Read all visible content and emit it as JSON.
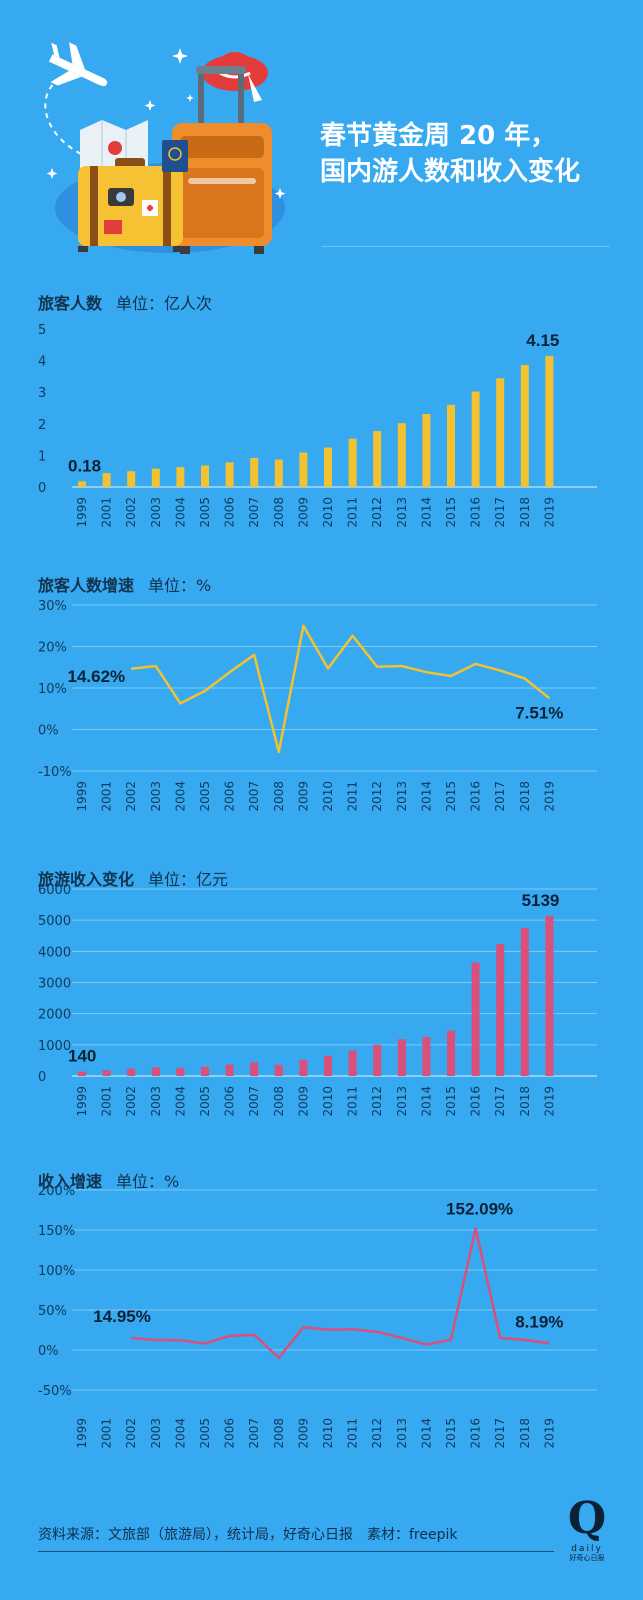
{
  "header": {
    "title_line1": "春节黄金周 20 年，",
    "title_line2": "国内游人数和收入变化"
  },
  "colors": {
    "background": "#36a9f0",
    "bar_visitors": "#f2c230",
    "line_visitor_growth": "#f2c230",
    "bar_revenue": "#d9507a",
    "line_revenue_growth": "#d9507a",
    "grid": "#7fcaf7"
  },
  "charts": {
    "visitors": {
      "title": "旅客人数",
      "unit": "单位：亿人次",
      "first_label": "0.18",
      "last_label": "4.15"
    },
    "visitor_growth": {
      "title": "旅客人数增速",
      "unit": "单位：%",
      "first_label": "14.62%",
      "last_label": "7.51%"
    },
    "revenue": {
      "title": "旅游收入变化",
      "unit": "单位：亿元",
      "first_label": "140",
      "last_label": "5139"
    },
    "revenue_growth": {
      "title": "收入增速",
      "unit": "单位：%",
      "first_label": "14.95%",
      "peak_label": "152.09%",
      "last_label": "8.19%"
    }
  },
  "chart_data": [
    {
      "type": "bar",
      "title": "旅客人数",
      "ylabel": "单位：亿人次",
      "categories": [
        "1999",
        "2001",
        "2002",
        "2003",
        "2004",
        "2005",
        "2006",
        "2007",
        "2008",
        "2009",
        "2010",
        "2011",
        "2012",
        "2013",
        "2014",
        "2015",
        "2016",
        "2017",
        "2018",
        "2019"
      ],
      "values": [
        0.18,
        0.44,
        0.5,
        0.58,
        0.63,
        0.68,
        0.78,
        0.92,
        0.87,
        1.09,
        1.25,
        1.53,
        1.77,
        2.02,
        2.31,
        2.6,
        3.02,
        3.44,
        3.86,
        4.15
      ],
      "ylim": [
        0,
        5
      ],
      "yticks": [
        0,
        1,
        2,
        3,
        4,
        5
      ],
      "grid": false
    },
    {
      "type": "line",
      "title": "旅客人数增速",
      "ylabel": "单位：%",
      "categories": [
        "1999",
        "2001",
        "2002",
        "2003",
        "2004",
        "2005",
        "2006",
        "2007",
        "2008",
        "2009",
        "2010",
        "2011",
        "2012",
        "2013",
        "2014",
        "2015",
        "2016",
        "2017",
        "2018",
        "2019"
      ],
      "values": [
        null,
        null,
        14.62,
        15.3,
        6.3,
        9.3,
        13.8,
        18,
        -5.4,
        25,
        14.7,
        22.6,
        15.1,
        15.3,
        13.8,
        12.9,
        15.8,
        14.2,
        12.3,
        7.51
      ],
      "ylim": [
        -10,
        30
      ],
      "yticks": [
        -10,
        0,
        10,
        20,
        30
      ],
      "ytick_labels": [
        "-10%",
        "0%",
        "10%",
        "20%",
        "30%"
      ],
      "grid": true
    },
    {
      "type": "bar",
      "title": "旅游收入变化",
      "ylabel": "单位：亿元",
      "categories": [
        "1999",
        "2001",
        "2002",
        "2003",
        "2004",
        "2005",
        "2006",
        "2007",
        "2008",
        "2009",
        "2010",
        "2011",
        "2012",
        "2013",
        "2014",
        "2015",
        "2016",
        "2017",
        "2018",
        "2019"
      ],
      "values": [
        140,
        180,
        240,
        280,
        260,
        300,
        370,
        440,
        360,
        520,
        650,
        820,
        1000,
        1180,
        1250,
        1460,
        3640,
        4230,
        4750,
        5139
      ],
      "ylim": [
        0,
        6000
      ],
      "yticks": [
        0,
        1000,
        2000,
        3000,
        4000,
        5000,
        6000
      ],
      "grid": true
    },
    {
      "type": "line",
      "title": "收入增速",
      "ylabel": "单位：%",
      "categories": [
        "1999",
        "2001",
        "2002",
        "2003",
        "2004",
        "2005",
        "2006",
        "2007",
        "2008",
        "2009",
        "2010",
        "2011",
        "2012",
        "2013",
        "2014",
        "2015",
        "2016",
        "2017",
        "2018",
        "2019"
      ],
      "values": [
        null,
        null,
        14.95,
        12.5,
        12.2,
        8.1,
        17.5,
        18.9,
        -9.8,
        28.5,
        25.5,
        25.8,
        22.6,
        15,
        6.8,
        13,
        152.09,
        15,
        12.6,
        8.19
      ],
      "ylim": [
        -50,
        200
      ],
      "yticks": [
        -50,
        0,
        50,
        100,
        150,
        200
      ],
      "ytick_labels": [
        "-50%",
        "0%",
        "50%",
        "100%",
        "150%",
        "200%"
      ],
      "grid": true
    }
  ],
  "footer": {
    "source": "资料来源：文旅部（旅游局），统计局，好奇心日报　素材：freepik",
    "logo_letter": "Q",
    "logo_word": "daily",
    "logo_sub": "好奇心日报"
  }
}
